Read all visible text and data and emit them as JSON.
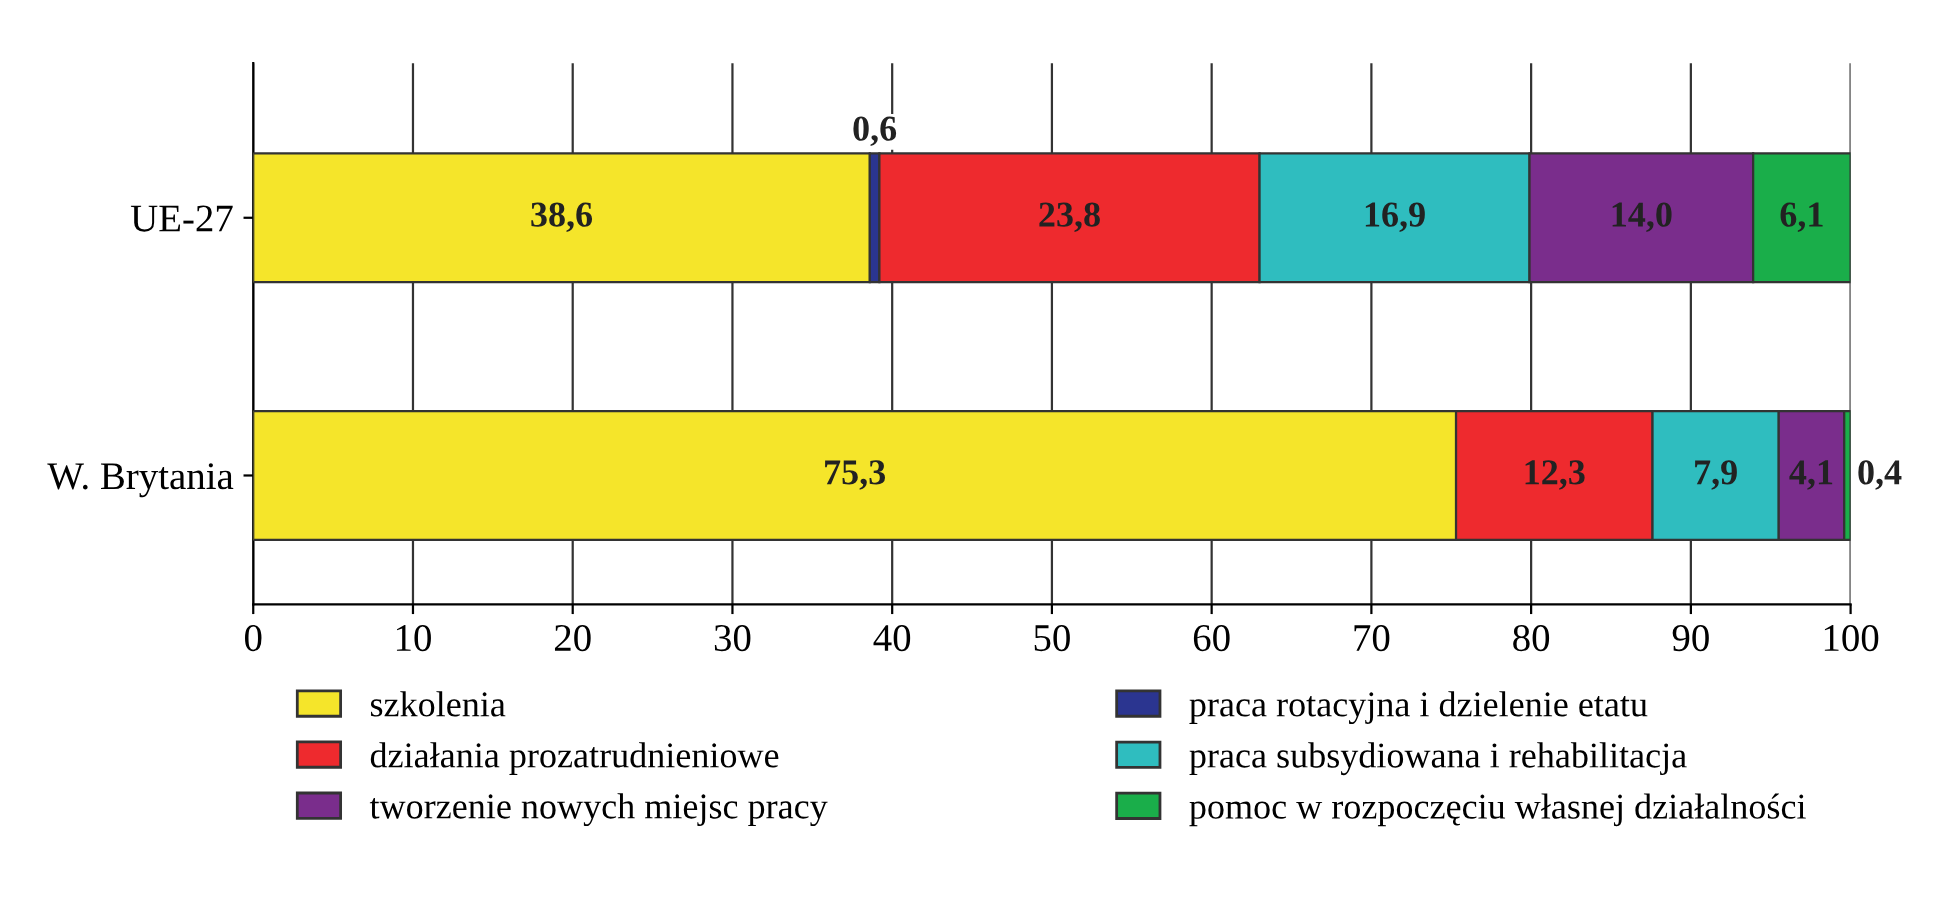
{
  "chart_data": {
    "type": "bar",
    "orientation": "horizontal",
    "stacked": true,
    "categories": [
      "UE-27",
      "W. Brytania"
    ],
    "series": [
      {
        "name": "szkolenia",
        "color": "#f5e52a",
        "values": [
          38.6,
          75.3
        ],
        "value_labels": [
          "38,6",
          "75,3"
        ]
      },
      {
        "name": "praca rotacyjna i dzielenie etatu",
        "color": "#2b3590",
        "values": [
          0.6,
          null
        ],
        "value_labels": [
          "0,6",
          null
        ]
      },
      {
        "name": "działania prozatrudnieniowe",
        "color": "#ee2a2e",
        "values": [
          23.8,
          12.3
        ],
        "value_labels": [
          "23,8",
          "12,3"
        ]
      },
      {
        "name": "praca subsydiowana i rehabilitacja",
        "color": "#2fbdbf",
        "values": [
          16.9,
          7.9
        ],
        "value_labels": [
          "16,9",
          "7,9"
        ]
      },
      {
        "name": "tworzenie nowych miejsc pracy",
        "color": "#7a2d8c",
        "values": [
          14.0,
          4.1
        ],
        "value_labels": [
          "14,0",
          "4,1"
        ]
      },
      {
        "name": "pomoc w rozpoczęciu własnej działalności",
        "color": "#1aae4a",
        "values": [
          6.1,
          0.4
        ],
        "value_labels": [
          "6,1",
          "0,4"
        ]
      }
    ],
    "xlim": [
      0,
      100
    ],
    "xticks": [
      0,
      10,
      20,
      30,
      40,
      50,
      60,
      70,
      80,
      90,
      100
    ],
    "grid": "x",
    "legend": "bottom"
  }
}
